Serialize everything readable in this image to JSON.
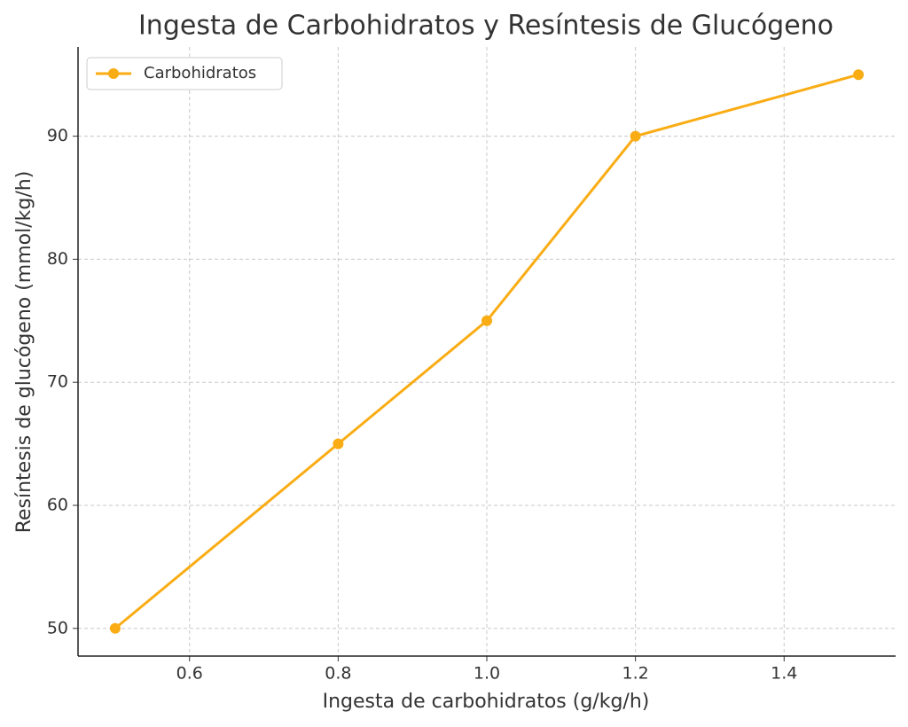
{
  "chart_data": {
    "type": "line",
    "title": "Ingesta de Carbohidratos y Resíntesis de Glucógeno",
    "xlabel": "Ingesta de carbohidratos (g/kg/h)",
    "ylabel": "Resíntesis de glucógeno (mmol/kg/h)",
    "x": [
      0.5,
      0.8,
      1.0,
      1.2,
      1.5
    ],
    "series": [
      {
        "name": "Carbohidratos",
        "color": "#f9ac14",
        "values": [
          50,
          65,
          75,
          90,
          95
        ]
      }
    ],
    "xlim": [
      0.45,
      1.55
    ],
    "ylim": [
      47.75,
      97.25
    ],
    "xticks": [
      0.6,
      0.8,
      {
        "value": 1.0,
        "label": "1.0"
      },
      1.2,
      1.4
    ],
    "yticks": [
      50,
      60,
      70,
      80,
      90
    ],
    "grid": true,
    "legend": "upper left"
  }
}
